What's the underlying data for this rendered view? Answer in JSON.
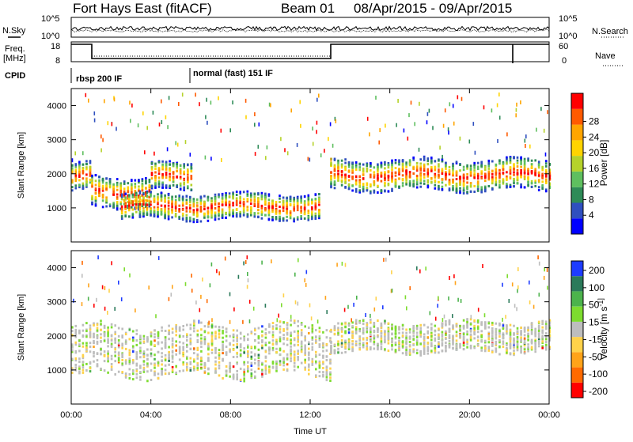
{
  "header": {
    "station": "Fort Hays East (fitACF)",
    "beam": "Beam 01",
    "date_range": "08/Apr/2015 - 09/Apr/2015"
  },
  "noise_panel": {
    "left_label": "N.Sky",
    "right_label": "N.Search",
    "left_ticks": [
      "10^5",
      "10^0"
    ],
    "right_ticks": [
      "10^5",
      "10^0"
    ]
  },
  "freq_panel": {
    "left_label_line1": "Freq.",
    "left_label_line2": "[MHz]",
    "right_label": "Nave",
    "left_ticks": [
      "18",
      "8"
    ],
    "right_ticks": [
      "60",
      "0"
    ]
  },
  "cpid_panel": {
    "label": "CPID",
    "modes": [
      "rbsp 200 IF",
      "normal (fast) 151 IF"
    ]
  },
  "colors": {
    "power": [
      "#0000ff",
      "#2f4fbf",
      "#2e8b57",
      "#5fbf5f",
      "#b5d22a",
      "#ffd400",
      "#ffa500",
      "#ff5a00",
      "#ff0000"
    ],
    "velocity": [
      "#1e3cff",
      "#2b7a5a",
      "#4cb34c",
      "#7ddc2f",
      "#bdbdbd",
      "#ffd24a",
      "#ffa319",
      "#ff6a00",
      "#ff0000"
    ]
  },
  "chart_data": [
    {
      "type": "heatmap",
      "title": "",
      "xlabel": "",
      "ylabel": "Slant Range [km]",
      "x_ticks": [
        "00:00",
        "04:00",
        "08:00",
        "12:00",
        "16:00",
        "20:00",
        "00:00"
      ],
      "y_ticks": [
        1000,
        2000,
        3000,
        4000
      ],
      "ylim": [
        0,
        4500
      ],
      "colorbar": {
        "label": "Power [dB]",
        "ticks": [
          "4",
          "8",
          "12",
          "16",
          "20",
          "24",
          "28"
        ]
      },
      "echo_bands": [
        {
          "t_start": 0.0,
          "t_end": 1.0,
          "range_lo": 1500,
          "range_hi": 2300
        },
        {
          "t_start": 1.0,
          "t_end": 4.0,
          "range_lo": 1000,
          "range_hi": 1900
        },
        {
          "t_start": 4.0,
          "t_end": 6.0,
          "range_lo": 1500,
          "range_hi": 2300
        },
        {
          "t_start": 2.5,
          "t_end": 12.5,
          "range_lo": 650,
          "range_hi": 1400
        },
        {
          "t_start": 13.0,
          "t_end": 24.0,
          "range_lo": 1500,
          "range_hi": 2400
        }
      ]
    },
    {
      "type": "heatmap",
      "title": "",
      "xlabel": "Time UT",
      "ylabel": "Slant Range [km]",
      "x_ticks": [
        "00:00",
        "04:00",
        "08:00",
        "12:00",
        "16:00",
        "20:00",
        "00:00"
      ],
      "y_ticks": [
        1000,
        2000,
        3000,
        4000
      ],
      "ylim": [
        0,
        4500
      ],
      "colorbar": {
        "label": "Velocity [m s^-1]",
        "ticks": [
          "200",
          "100",
          "50",
          "15",
          "-15",
          "-50",
          "-100",
          "-200"
        ]
      },
      "echo_bands": [
        {
          "t_start": 0.0,
          "t_end": 13.0,
          "range_lo": 800,
          "range_hi": 2300
        },
        {
          "t_start": 13.0,
          "t_end": 24.0,
          "range_lo": 1500,
          "range_hi": 2400
        }
      ]
    }
  ]
}
